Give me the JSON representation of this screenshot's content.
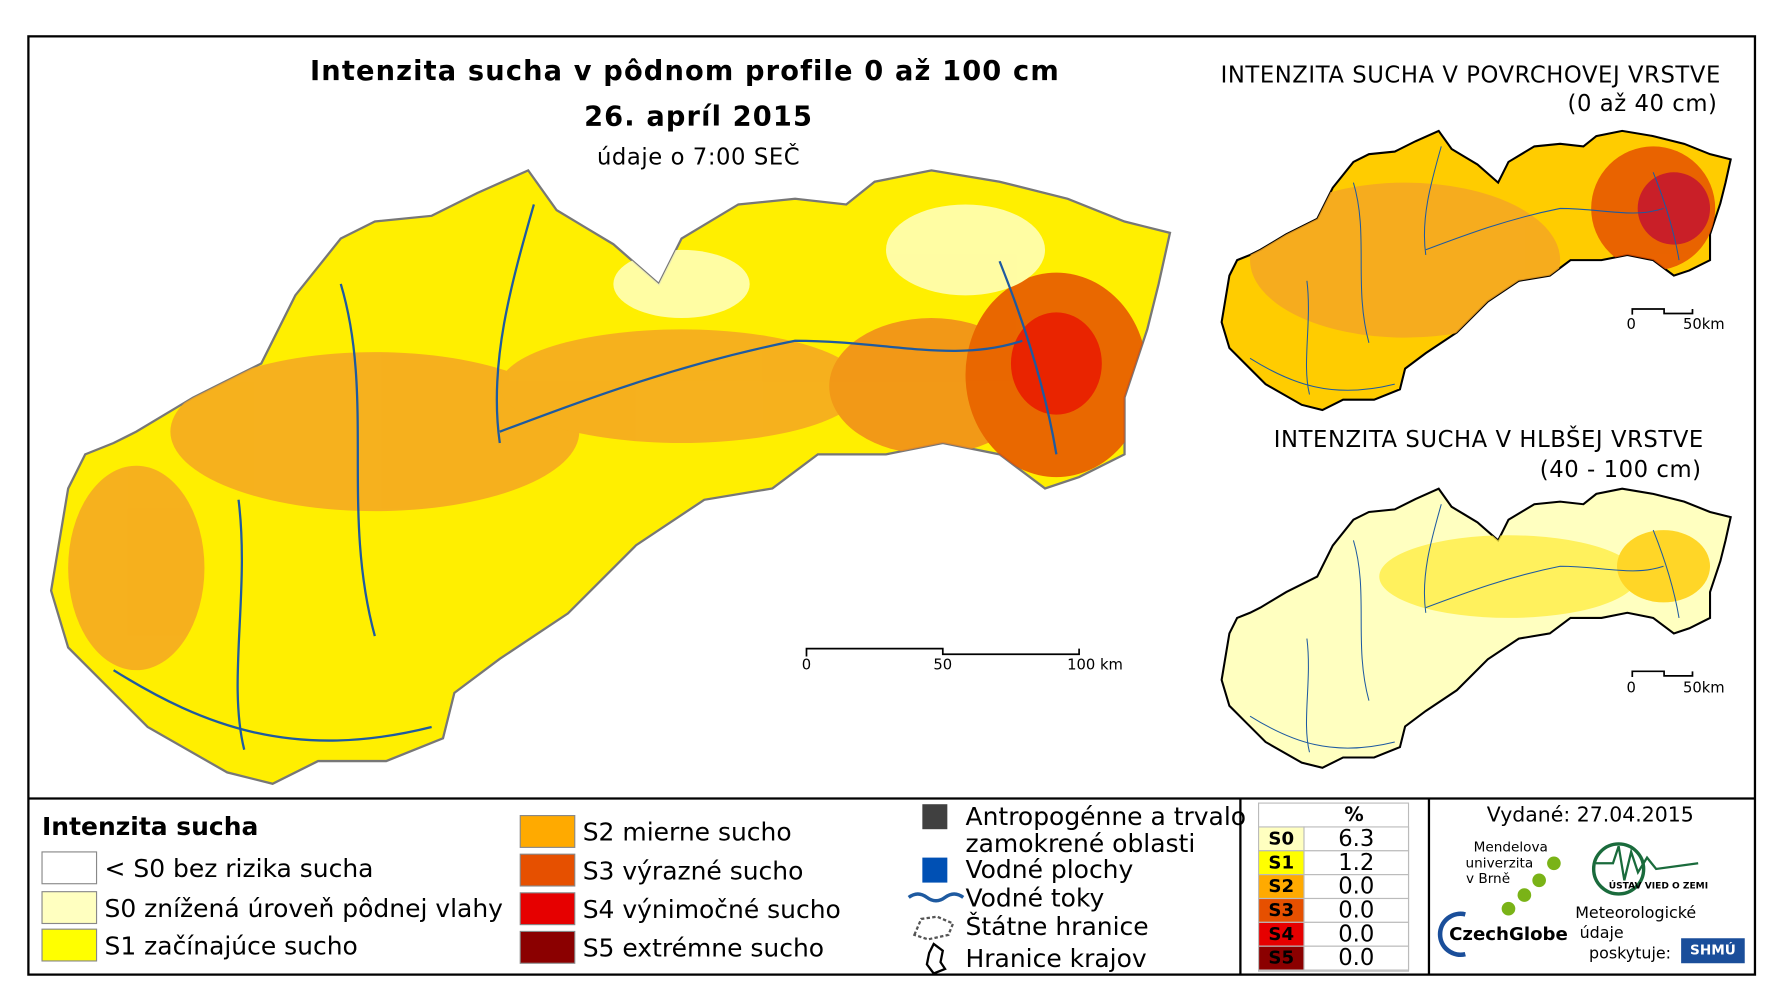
{
  "main_map": {
    "title": "Intenzita sucha v pôdnom profile 0 až 100 cm",
    "date": "26. apríl 2015",
    "subtitle": "údaje o 7:00 SEČ",
    "scale": [
      "0",
      "50",
      "100 km"
    ]
  },
  "inset_top": {
    "title": "INTENZITA SUCHA V POVRCHOVEJ VRSTVE",
    "subtitle": "(0 až 40 cm)",
    "scale": [
      "0",
      "50km"
    ]
  },
  "inset_bottom": {
    "title": "INTENZITA SUCHA V HLBŠEJ VRSTVE",
    "subtitle": "(40 - 100 cm)",
    "scale": [
      "0",
      "50km"
    ]
  },
  "legend": {
    "title": "Intenzita sucha",
    "classes": [
      {
        "label": "< S0 bez rizika sucha",
        "color": "#ffffff"
      },
      {
        "label": "S0 znížená úroveň pôdnej vlahy",
        "color": "#ffffc0"
      },
      {
        "label": "S1 začínajúce sucho",
        "color": "#ffff00"
      },
      {
        "label": "S2 mierne sucho",
        "color": "#ffaa00"
      },
      {
        "label": "S3 výrazné sucho",
        "color": "#e65000"
      },
      {
        "label": "S4 výnimočné sucho",
        "color": "#e60000"
      },
      {
        "label": "S5 extrémne sucho",
        "color": "#8b0000"
      }
    ],
    "other": [
      {
        "lines": [
          "Antropogénne a trvalo",
          "zamokrené oblasti"
        ],
        "color": "#404040"
      },
      {
        "lines": [
          "Vodné plochy"
        ],
        "color": "#0050b4"
      },
      {
        "lines": [
          "Vodné toky"
        ],
        "color": "#1e5aa0"
      },
      {
        "lines": [
          "Štátne hranice"
        ],
        "color": "#555555"
      },
      {
        "lines": [
          "Hranice krajov"
        ],
        "color": "#000000"
      }
    ]
  },
  "table": {
    "header": "%",
    "rows": [
      {
        "code": "S0",
        "percent": "6.3",
        "color": "#ffffc0"
      },
      {
        "code": "S1",
        "percent": "1.2",
        "color": "#ffff00"
      },
      {
        "code": "S2",
        "percent": "0.0",
        "color": "#ffaa00"
      },
      {
        "code": "S3",
        "percent": "0.0",
        "color": "#e65000"
      },
      {
        "code": "S4",
        "percent": "0.0",
        "color": "#e60000"
      },
      {
        "code": "S5",
        "percent": "0.0",
        "color": "#8b0000"
      }
    ]
  },
  "issued": "Vydané: 27.04.2015",
  "logos": {
    "mendel": [
      "Mendelova",
      "univerzita",
      "v Brně"
    ],
    "czechglobe": "CzechGlobe",
    "ustav": "ÚSTAV VIED O ZEMI",
    "meteo": [
      "Meteorologické",
      "údaje",
      "poskytuje:"
    ],
    "shmu": "SHMÚ"
  }
}
